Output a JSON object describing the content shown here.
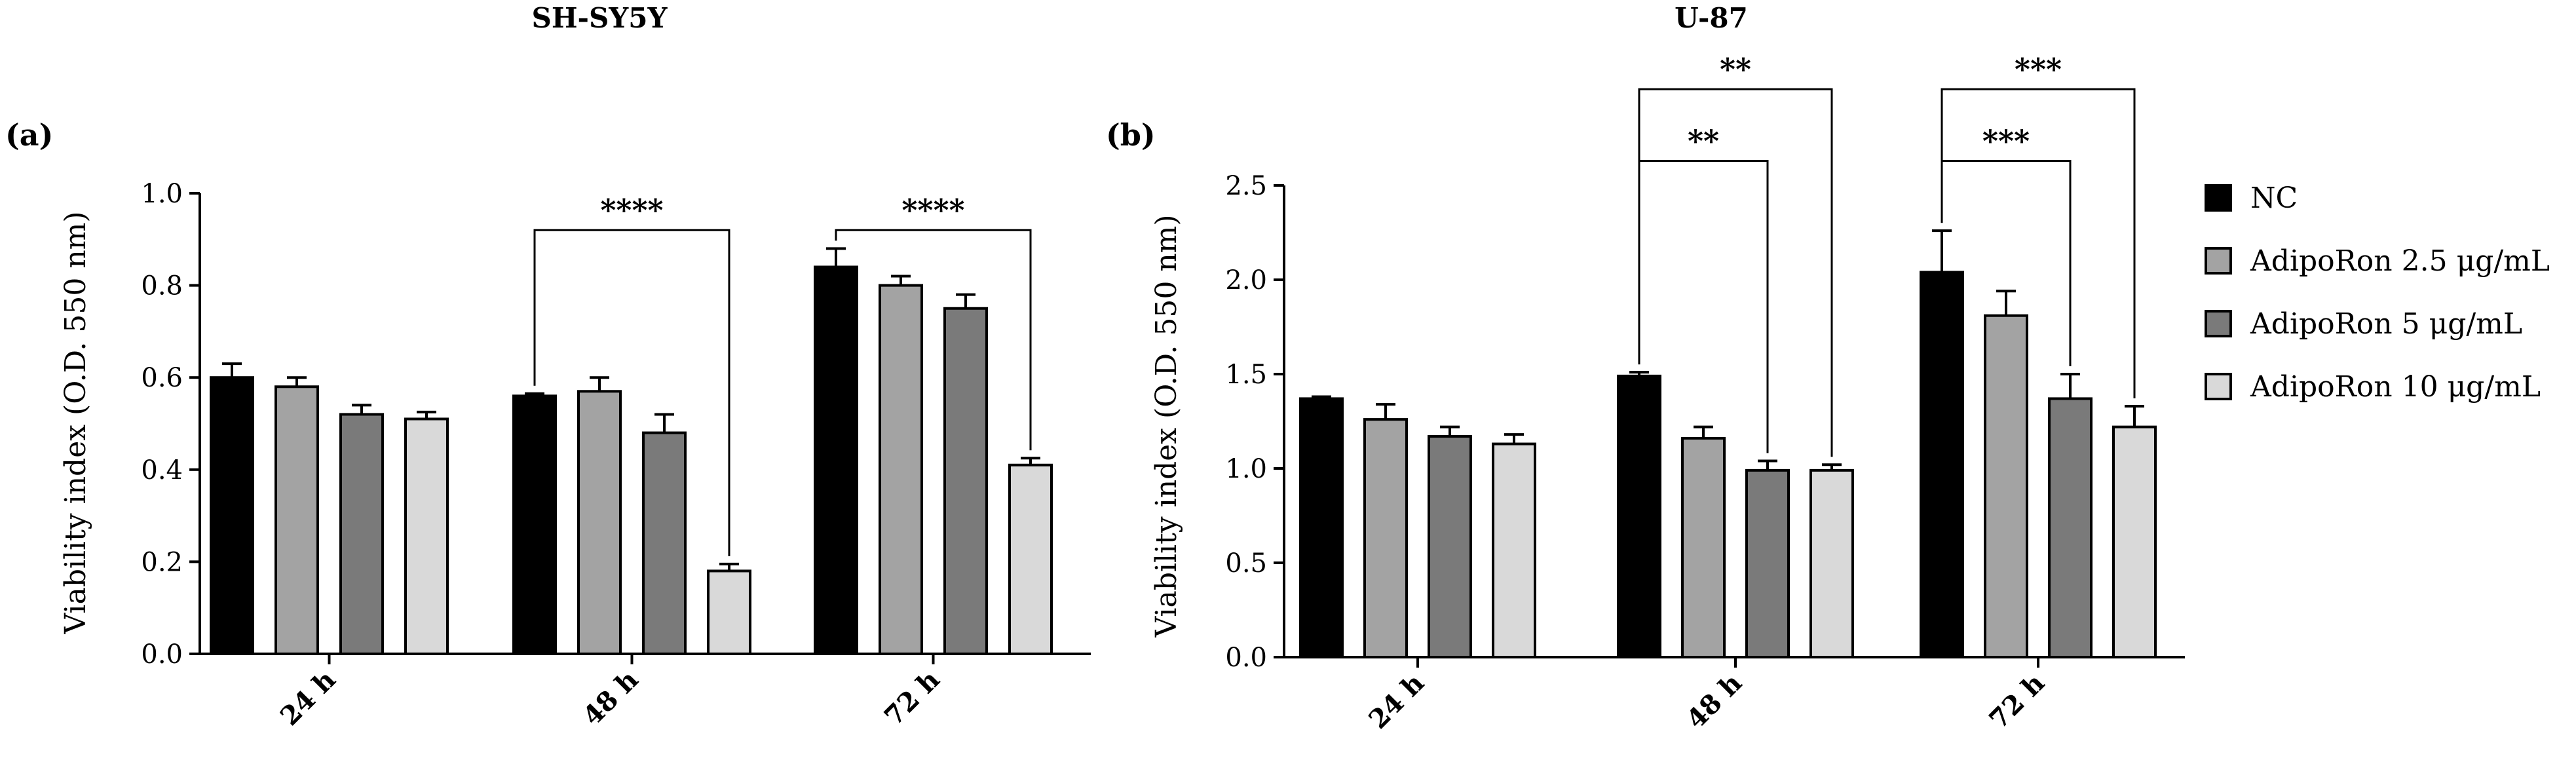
{
  "chart_data": [
    {
      "type": "bar",
      "panel_label": "(a)",
      "title": "SH-SY5Y",
      "ylabel": "Viability index (O.D. 550 nm)",
      "xlabel": "",
      "ylim": [
        0,
        1.0
      ],
      "yticks": [
        "0.0",
        "0.2",
        "0.4",
        "0.6",
        "0.8",
        "1.0"
      ],
      "yticks_values": [
        0,
        0.2,
        0.4,
        0.6,
        0.8,
        1.0
      ],
      "categories": [
        "24 h",
        "48 h",
        "72 h"
      ],
      "series": [
        {
          "name": "NC",
          "values": [
            0.6,
            0.56,
            0.84
          ],
          "errors": [
            0.03,
            0.005,
            0.04
          ]
        },
        {
          "name": "AdipoRon 2.5 μg/mL",
          "values": [
            0.58,
            0.57,
            0.8
          ],
          "errors": [
            0.02,
            0.03,
            0.02
          ]
        },
        {
          "name": "AdipoRon 5 μg/mL",
          "values": [
            0.52,
            0.48,
            0.75
          ],
          "errors": [
            0.02,
            0.04,
            0.03
          ]
        },
        {
          "name": "AdipoRon 10 μg/mL",
          "values": [
            0.51,
            0.18,
            0.41
          ],
          "errors": [
            0.015,
            0.015,
            0.015
          ]
        }
      ],
      "significance": [
        {
          "category": 1,
          "from_series": 0,
          "to_series": 3,
          "y": 0.92,
          "label": "****"
        },
        {
          "category": 2,
          "from_series": 0,
          "to_series": 3,
          "y": 0.92,
          "label": "****"
        }
      ]
    },
    {
      "type": "bar",
      "panel_label": "(b)",
      "title": "U-87",
      "ylabel": "Viability index (O.D. 550 nm)",
      "xlabel": "",
      "ylim": [
        0,
        2.5
      ],
      "yticks": [
        "0.0",
        "0.5",
        "1.0",
        "1.5",
        "2.0",
        "2.5"
      ],
      "yticks_values": [
        0,
        0.5,
        1.0,
        1.5,
        2.0,
        2.5
      ],
      "categories": [
        "24 h",
        "48 h",
        "72 h"
      ],
      "series": [
        {
          "name": "NC",
          "values": [
            1.37,
            1.49,
            2.04
          ],
          "errors": [
            0.01,
            0.02,
            0.22
          ]
        },
        {
          "name": "AdipoRon 2.5 μg/mL",
          "values": [
            1.26,
            1.16,
            1.81
          ],
          "errors": [
            0.08,
            0.06,
            0.13
          ]
        },
        {
          "name": "AdipoRon 5 μg/mL",
          "values": [
            1.17,
            0.99,
            1.37
          ],
          "errors": [
            0.05,
            0.05,
            0.13
          ]
        },
        {
          "name": "AdipoRon 10 μg/mL",
          "values": [
            1.13,
            0.99,
            1.22
          ],
          "errors": [
            0.05,
            0.03,
            0.11
          ]
        }
      ],
      "significance": [
        {
          "category": 1,
          "from_series": 0,
          "to_series": 2,
          "y": 2.63,
          "label": "**"
        },
        {
          "category": 1,
          "from_series": 0,
          "to_series": 3,
          "y": 3.01,
          "label": "**"
        },
        {
          "category": 2,
          "from_series": 0,
          "to_series": 2,
          "y": 2.63,
          "label": "***"
        },
        {
          "category": 2,
          "from_series": 0,
          "to_series": 3,
          "y": 3.01,
          "label": "***"
        }
      ]
    }
  ],
  "legend": {
    "position": "right",
    "items": [
      {
        "label": "NC",
        "color": "#000000"
      },
      {
        "label": "AdipoRon 2.5 μg/mL",
        "color": "#a3a3a3"
      },
      {
        "label": "AdipoRon 5 μg/mL",
        "color": "#7a7a7a"
      },
      {
        "label": "AdipoRon 10 μg/mL",
        "color": "#d9d9d9"
      }
    ]
  }
}
